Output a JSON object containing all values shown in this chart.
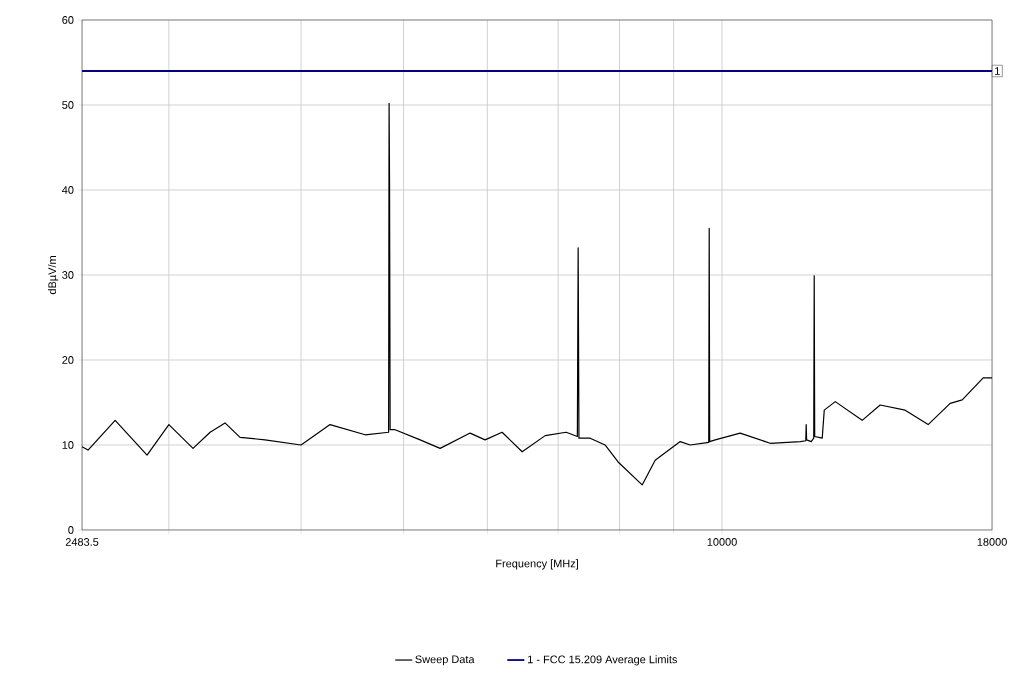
{
  "chart_data": {
    "type": "line",
    "xlabel": "Frequency [MHz]",
    "ylabel": "dBµV/m",
    "series": [
      {
        "name": "Sweep Data",
        "color": "#000000",
        "x": [
          2483.5,
          2516,
          2669,
          2861,
          3000,
          3162,
          3282,
          3390,
          3503,
          3699,
          4000,
          4261,
          4599,
          4840,
          4845,
          4850,
          4856,
          4909,
          5184,
          5414,
          5780,
          5971,
          6196,
          6473,
          6805,
          7123,
          7300,
          7312,
          7325,
          7505,
          7754,
          7977,
          8405,
          8646,
          9130,
          9331,
          9715,
          9725,
          9735,
          9852,
          10403,
          11106,
          11857,
          12000,
          12011,
          12022,
          12142,
          12210,
          12222,
          12235,
          12437,
          12492,
          12795,
          13567,
          14109,
          14899,
          15663,
          16431,
          16868,
          17656,
          18000
        ],
        "values": [
          9.8,
          9.4,
          12.9,
          8.8,
          12.4,
          9.6,
          11.5,
          12.6,
          10.9,
          10.6,
          10.0,
          12.4,
          11.2,
          11.5,
          50.2,
          40.4,
          11.8,
          11.8,
          10.6,
          9.6,
          11.4,
          10.6,
          11.5,
          9.2,
          11.1,
          11.5,
          11.0,
          33.2,
          10.8,
          10.8,
          10.0,
          8.0,
          5.3,
          8.2,
          10.4,
          10.0,
          10.3,
          35.5,
          10.4,
          10.6,
          11.4,
          10.2,
          10.4,
          10.5,
          12.4,
          10.6,
          10.4,
          10.8,
          29.9,
          11.0,
          10.8,
          14.1,
          15.1,
          12.9,
          14.7,
          14.1,
          12.4,
          14.9,
          15.3,
          17.9,
          17.9
        ]
      },
      {
        "name": "1 - FCC 15.209 Average Limits",
        "color": "#000080",
        "x": [
          2483.5,
          18000
        ],
        "values": [
          54,
          54
        ]
      }
    ],
    "xlim": [
      2483.5,
      18000
    ],
    "ylim": [
      0,
      60
    ],
    "xticks": [
      2483.5,
      {
        "value": 3000,
        "label": null
      },
      {
        "value": 4000,
        "label": null
      },
      {
        "value": 5000,
        "label": null
      },
      {
        "value": 6000,
        "label": null
      },
      {
        "value": 7000,
        "label": null
      },
      {
        "value": 8000,
        "label": null
      },
      {
        "value": 9000,
        "label": null
      },
      10000,
      18000
    ],
    "yticks": [
      0,
      10,
      20,
      30,
      40,
      50,
      60
    ],
    "log": "x",
    "grid": true,
    "legend": "bottom",
    "marker": "none",
    "annotations": [
      {
        "text": "1",
        "x": 18000,
        "y": 54
      }
    ]
  }
}
